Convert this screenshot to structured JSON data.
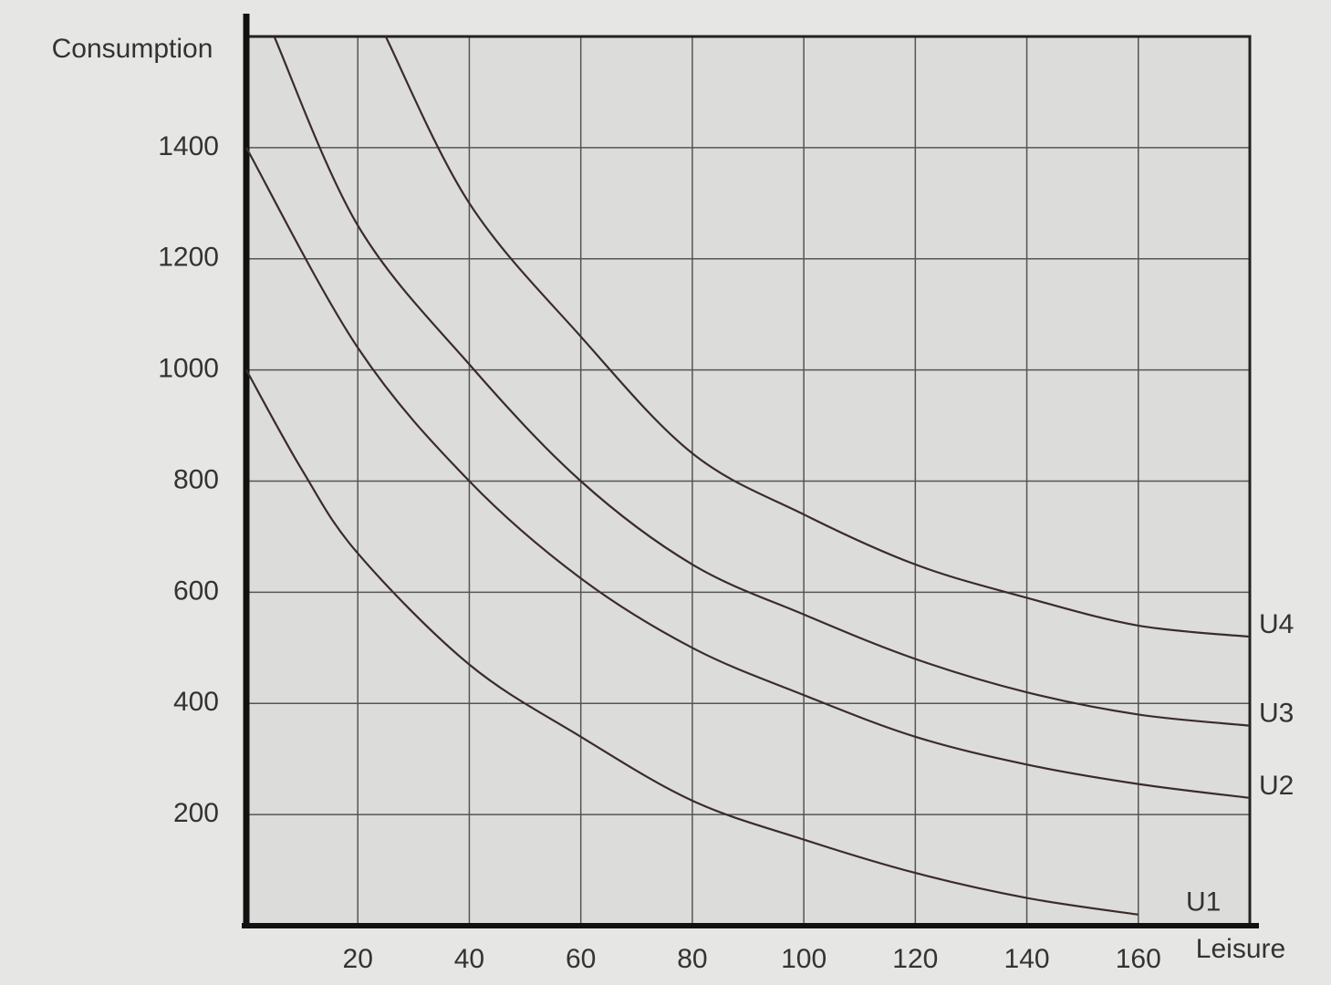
{
  "chart_data": {
    "type": "line",
    "ylabel": "Consumption",
    "xlabel": "Leisure",
    "xlim": [
      0,
      180
    ],
    "ylim": [
      0,
      1600
    ],
    "xticks": [
      20,
      40,
      60,
      80,
      100,
      120,
      140,
      160
    ],
    "yticks": [
      200,
      400,
      600,
      800,
      1000,
      1200,
      1400
    ],
    "grid": true,
    "series": [
      {
        "name": "U1",
        "color": "#3b2b2b",
        "x": [
          0,
          10,
          20,
          40,
          60,
          80,
          100,
          120,
          140,
          160
        ],
        "values": [
          1000,
          820,
          670,
          470,
          340,
          225,
          155,
          95,
          50,
          20
        ]
      },
      {
        "name": "U2",
        "color": "#3b2b2b",
        "x": [
          0,
          20,
          40,
          60,
          80,
          100,
          120,
          140,
          160,
          180
        ],
        "values": [
          1400,
          1040,
          800,
          625,
          500,
          415,
          340,
          290,
          255,
          230
        ]
      },
      {
        "name": "U3",
        "color": "#3b2b2b",
        "x": [
          5,
          20,
          40,
          60,
          80,
          100,
          120,
          140,
          160,
          180
        ],
        "values": [
          1600,
          1260,
          1010,
          800,
          650,
          560,
          480,
          420,
          380,
          360
        ]
      },
      {
        "name": "U4",
        "color": "#3b2b2b",
        "x": [
          25,
          40,
          60,
          80,
          100,
          120,
          140,
          160,
          180
        ],
        "values": [
          1600,
          1300,
          1060,
          850,
          740,
          650,
          590,
          540,
          520
        ]
      }
    ]
  }
}
